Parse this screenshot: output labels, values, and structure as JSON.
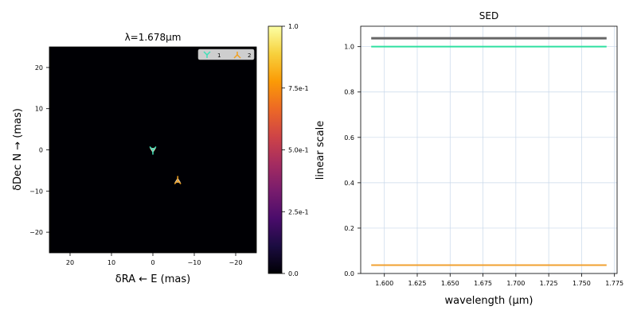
{
  "colors": {
    "image_bg": "#000004",
    "star1": "#3fe0b8",
    "star2": "#f0a020",
    "sed_total": "#666666",
    "sed_star1": "#2ee0a0",
    "sed_star2": "#f0a030",
    "grid": "#c8d8ea",
    "colormap": [
      "#000004",
      "#1b0c41",
      "#4a0c6b",
      "#781c6d",
      "#a52c60",
      "#cf4446",
      "#ed6925",
      "#fb9b06",
      "#f7d13d",
      "#fcffa4"
    ]
  },
  "chart_data": [
    {
      "type": "scatter",
      "title": "λ=1.678μm",
      "xlabel": "δRA ← E (mas)",
      "ylabel": "δDec N → (mas)",
      "xlim": [
        25,
        -25
      ],
      "ylim": [
        -25,
        25
      ],
      "xticks": [
        "20",
        "10",
        "0",
        "−10",
        "−20"
      ],
      "xtick_values": [
        20,
        10,
        0,
        -10,
        -20
      ],
      "yticks": [
        "20",
        "10",
        "0",
        "−10",
        "−20"
      ],
      "ytick_values": [
        20,
        10,
        0,
        -10,
        -20
      ],
      "grid": false,
      "legend_position": "top-right",
      "series": [
        {
          "name": "1",
          "x": [
            0
          ],
          "y": [
            0
          ],
          "marker": "tri_down"
        },
        {
          "name": "2",
          "x": [
            -6
          ],
          "y": [
            -7.5
          ],
          "marker": "tri_up"
        }
      ],
      "colorbar": {
        "range": [
          0,
          1
        ],
        "ticks": [
          "0.0",
          "2.5e-1",
          "5.0e-1",
          "7.5e-1",
          "1.0"
        ],
        "tick_values": [
          0,
          0.25,
          0.5,
          0.75,
          1.0
        ],
        "label": "linear scale",
        "colormap": "inferno"
      }
    },
    {
      "type": "line",
      "title": "SED",
      "xlabel": "wavelength (μm)",
      "ylabel": "",
      "xlim": [
        1.582,
        1.777
      ],
      "ylim": [
        0,
        1.09
      ],
      "xticks": [
        "1.600",
        "1.625",
        "1.650",
        "1.675",
        "1.700",
        "1.725",
        "1.750",
        "1.775"
      ],
      "xtick_values": [
        1.6,
        1.625,
        1.65,
        1.675,
        1.7,
        1.725,
        1.75,
        1.775
      ],
      "yticks": [
        "0.0",
        "0.2",
        "0.4",
        "0.6",
        "0.8",
        "1.0"
      ],
      "ytick_values": [
        0,
        0.2,
        0.4,
        0.6,
        0.8,
        1.0
      ],
      "grid": true,
      "series": [
        {
          "x": [
            1.59,
            1.769
          ],
          "y": [
            1.037,
            1.037
          ]
        },
        {
          "x": [
            1.59,
            1.769
          ],
          "y": [
            1.0,
            1.0
          ]
        },
        {
          "x": [
            1.59,
            1.769
          ],
          "y": [
            0.037,
            0.037
          ]
        }
      ]
    }
  ]
}
